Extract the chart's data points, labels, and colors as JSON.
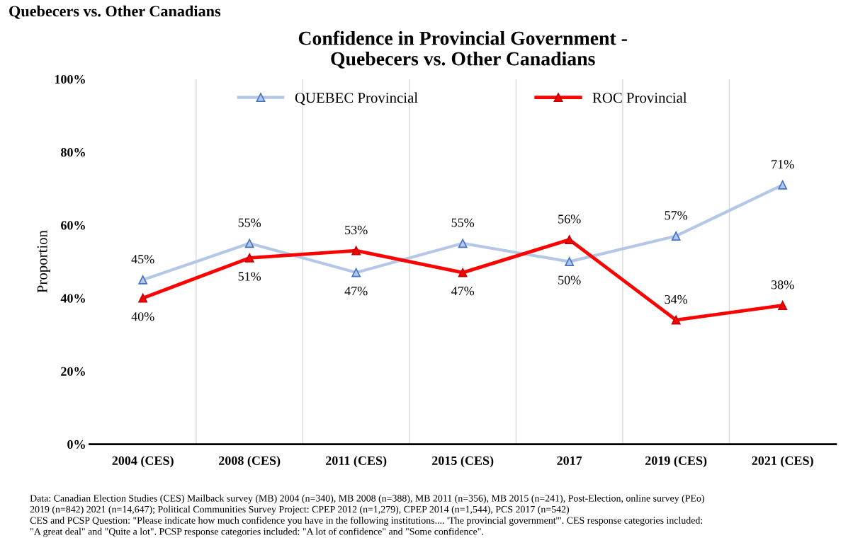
{
  "chart_data": {
    "type": "line",
    "title": "Confidence in Provincial Government -\nQuebecers vs. Other Canadians",
    "ylabel": "Proportion",
    "categories": [
      "2004 (CES)",
      "2008 (CES)",
      "2011 (CES)",
      "2015 (CES)",
      "2017",
      "2019 (CES)",
      "2021 (CES)"
    ],
    "series": [
      {
        "name": "QUEBEC Provincial",
        "color": "#b4c7e7",
        "values": [
          45,
          55,
          47,
          55,
          50,
          57,
          71
        ]
      },
      {
        "name": "ROC Provincial",
        "color": "#ff0000",
        "values": [
          40,
          51,
          53,
          47,
          56,
          34,
          38
        ]
      }
    ],
    "ylim": [
      0,
      100
    ],
    "yticks": [
      {
        "value": 0,
        "label": "0%"
      },
      {
        "value": 20,
        "label": "20%"
      },
      {
        "value": 40,
        "label": "40%"
      },
      {
        "value": 60,
        "label": "60%"
      },
      {
        "value": 80,
        "label": "80%"
      },
      {
        "value": 100,
        "label": "100%"
      }
    ],
    "value_labels": [
      [
        "45%",
        "55%",
        "47%",
        "55%",
        "50%",
        "57%",
        "71%"
      ],
      [
        "40%",
        "51%",
        "53%",
        "47%",
        "56%",
        "34%",
        "38%"
      ]
    ],
    "marker": "triangle",
    "line_style": "solid",
    "legend": "top",
    "grid": "x",
    "annotations": [
      "Quebecers vs. Other Canadians",
      "Data: Canadian Election Studies (CES) Mailback survey (MB) 2004 (n=340), MB 2008 (n=388), MB 2011 (n=356), MB 2015 (n=241), Post-Election, online survey (PEo)\n2019 (n=842) 2021 (n=14,647); Political Communities Survey Project: CPEP 2012 (n=1,279), CPEP 2014 (n=1,544), PCS 2017 (n=542)\nCES and PCSP Question: \"Please indicate how much confidence you have in the following institutions.... 'The provincial government'\". CES response categories included:\n\"A great deal\" and \"Quite a lot\". PCSP response categories included: \"A lot of confidence\" and \"Some confidence\"."
    ]
  }
}
